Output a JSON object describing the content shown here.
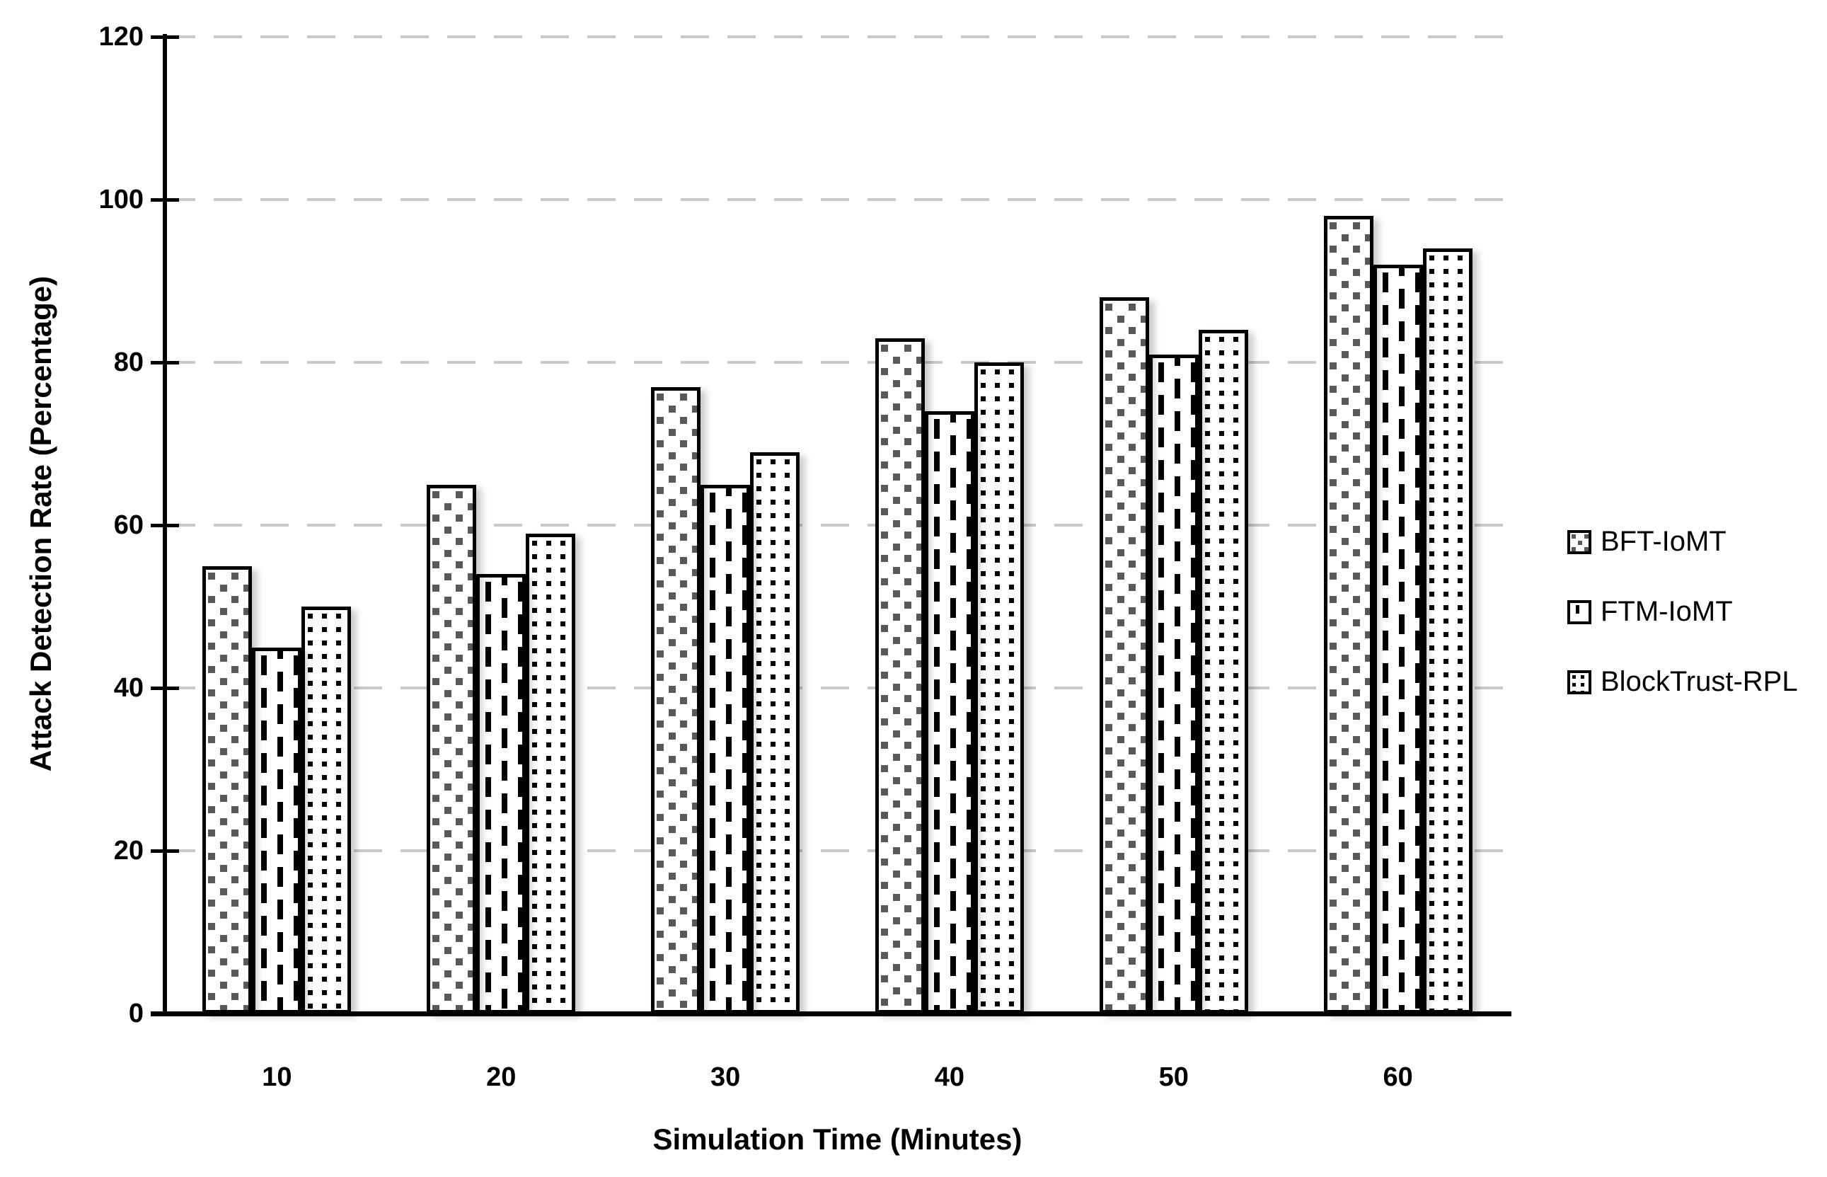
{
  "chart_data": {
    "type": "bar",
    "title": "",
    "xlabel": "Simulation Time (Minutes)",
    "ylabel": "Attack Detection Rate (Percentage)",
    "categories": [
      "10",
      "20",
      "30",
      "40",
      "50",
      "60"
    ],
    "series": [
      {
        "name": "BFT-IoMT",
        "pattern": "speckle-25pct",
        "values": [
          55,
          65,
          77,
          83,
          88,
          98
        ]
      },
      {
        "name": "FTM-IoMT",
        "pattern": "vertical-dashes",
        "values": [
          45,
          54,
          65,
          74,
          81,
          92
        ]
      },
      {
        "name": "BlockTrust-RPL",
        "pattern": "dot-grid",
        "values": [
          50,
          59,
          69,
          80,
          84,
          94
        ]
      }
    ],
    "ylim": [
      0,
      120
    ],
    "ytick_step": 20,
    "yticks": [
      "0",
      "20",
      "40",
      "60",
      "80",
      "100",
      "120"
    ],
    "grid": "dashed horizontal gridlines",
    "legend_position": "right",
    "colors": {
      "bar_fill": "#ffffff",
      "bar_border": "#000000",
      "speckle": "#595959",
      "gridline": "#c9c9c9",
      "text": "#000000",
      "background": "#ffffff"
    }
  }
}
